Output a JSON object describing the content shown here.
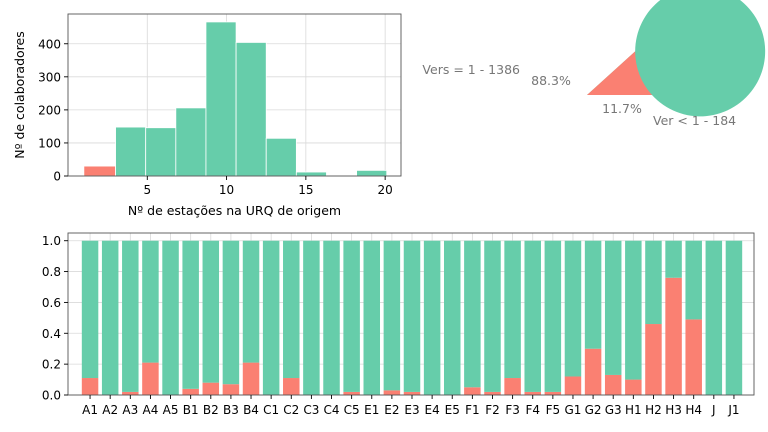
{
  "colors": {
    "teal": "#66cdaa",
    "salmon": "#fa8072",
    "grid": "#d9d9d9",
    "pie_text": "#777777"
  },
  "chart_data": [
    {
      "type": "bar",
      "subtype": "histogram",
      "xlabel": "Nº de estações na URQ de origem",
      "ylabel": "Nº de colaboradores",
      "xlim": [
        0,
        21
      ],
      "ylim": [
        0,
        490
      ],
      "xticks": [
        5,
        10,
        15,
        20
      ],
      "yticks": [
        0,
        100,
        200,
        300,
        400
      ],
      "grid": true,
      "bins": [
        {
          "from": 1.0,
          "to": 3.0,
          "value": 30,
          "color": "salmon"
        },
        {
          "from": 3.0,
          "to": 4.9,
          "value": 148,
          "color": "teal"
        },
        {
          "from": 4.9,
          "to": 6.8,
          "value": 146,
          "color": "teal"
        },
        {
          "from": 6.8,
          "to": 8.7,
          "value": 206,
          "color": "teal"
        },
        {
          "from": 8.7,
          "to": 10.6,
          "value": 466,
          "color": "teal"
        },
        {
          "from": 10.6,
          "to": 12.5,
          "value": 404,
          "color": "teal"
        },
        {
          "from": 12.5,
          "to": 14.4,
          "value": 114,
          "color": "teal"
        },
        {
          "from": 14.4,
          "to": 16.3,
          "value": 12,
          "color": "teal"
        },
        {
          "from": 16.3,
          "to": 18.2,
          "value": 0,
          "color": "teal"
        },
        {
          "from": 18.2,
          "to": 20.1,
          "value": 17,
          "color": "teal"
        }
      ]
    },
    {
      "type": "pie",
      "slices": [
        {
          "label": "Vers = 1 - 1386",
          "value": 1386,
          "pct": "88.3%",
          "color": "teal"
        },
        {
          "label": "Ver < 1 - 184",
          "value": 184,
          "pct": "11.7%",
          "color": "salmon"
        }
      ]
    },
    {
      "type": "bar",
      "subtype": "stacked",
      "ylim": [
        0,
        1.05
      ],
      "yticks": [
        "0.0",
        "0.2",
        "0.4",
        "0.6",
        "0.8",
        "1.0"
      ],
      "grid": true,
      "categories": [
        "A1",
        "A2",
        "A3",
        "A4",
        "A5",
        "B1",
        "B2",
        "B3",
        "B4",
        "C1",
        "C2",
        "C3",
        "C4",
        "C5",
        "E1",
        "E2",
        "E3",
        "E4",
        "E5",
        "F1",
        "F2",
        "F3",
        "F4",
        "F5",
        "G1",
        "G2",
        "G3",
        "H1",
        "H2",
        "H3",
        "H4",
        "J",
        "J1"
      ],
      "series": [
        {
          "color": "salmon",
          "values": [
            0.11,
            0.0,
            0.02,
            0.21,
            0.0,
            0.04,
            0.08,
            0.07,
            0.21,
            0.0,
            0.11,
            0.0,
            0.0,
            0.02,
            0.0,
            0.03,
            0.02,
            0.0,
            0.0,
            0.05,
            0.02,
            0.11,
            0.02,
            0.02,
            0.12,
            0.3,
            0.13,
            0.1,
            0.46,
            0.76,
            0.49,
            0.0,
            0.0
          ]
        },
        {
          "color": "teal",
          "values": [
            0.89,
            1.0,
            0.98,
            0.79,
            1.0,
            0.96,
            0.92,
            0.93,
            0.79,
            1.0,
            0.89,
            1.0,
            1.0,
            0.98,
            1.0,
            0.97,
            0.98,
            1.0,
            1.0,
            0.95,
            0.98,
            0.89,
            0.98,
            0.98,
            0.88,
            0.7,
            0.87,
            0.9,
            0.54,
            0.24,
            0.51,
            1.0,
            1.0
          ]
        }
      ]
    }
  ]
}
